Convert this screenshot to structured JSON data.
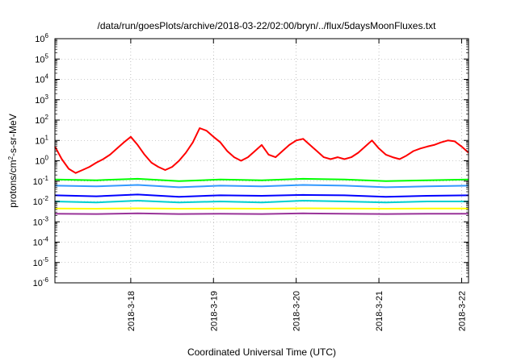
{
  "chart_data": {
    "type": "line",
    "title": "/data/run/goesPlots/archive/2018-03-22/02:00/bryn/../flux/5daysMoonFluxes.txt",
    "xlabel": "Coordinated Universal Time (UTC)",
    "ylabel": {
      "pre": "protons/cm",
      "sup": "2",
      "post": "-s-sr-MeV"
    },
    "y_scale": "log",
    "ylim": [
      1e-06,
      1000000.0
    ],
    "xlim": [
      "2018-03-17T02:00",
      "2018-03-22T02:00"
    ],
    "grid": true,
    "legend": "none",
    "y_ticks": [
      {
        "value": 1e-06,
        "base": "10",
        "exp": "-6"
      },
      {
        "value": 1e-05,
        "base": "10",
        "exp": "-5"
      },
      {
        "value": 0.0001,
        "base": "10",
        "exp": "-4"
      },
      {
        "value": 0.001,
        "base": "10",
        "exp": "-3"
      },
      {
        "value": 0.01,
        "base": "10",
        "exp": "-2"
      },
      {
        "value": 0.1,
        "base": "10",
        "exp": "-1"
      },
      {
        "value": 1,
        "base": "10",
        "exp": "0"
      },
      {
        "value": 10,
        "base": "10",
        "exp": "1"
      },
      {
        "value": 100,
        "base": "10",
        "exp": "2"
      },
      {
        "value": 1000,
        "base": "10",
        "exp": "3"
      },
      {
        "value": 10000,
        "base": "10",
        "exp": "4"
      },
      {
        "value": 100000,
        "base": "10",
        "exp": "5"
      },
      {
        "value": 1000000,
        "base": "10",
        "exp": "6"
      }
    ],
    "x_ticks": [
      {
        "value": "2018-03-18T00:00",
        "label": "2018-3-18"
      },
      {
        "value": "2018-03-19T00:00",
        "label": "2018-3-19"
      },
      {
        "value": "2018-03-20T00:00",
        "label": "2018-3-20"
      },
      {
        "value": "2018-03-21T00:00",
        "label": "2018-3-21"
      },
      {
        "value": "2018-03-22T00:00",
        "label": "2018-3-22"
      }
    ],
    "series": [
      {
        "color": "#ff0000",
        "x": [
          "2018-03-17T02:00",
          "2018-03-17T04:00",
          "2018-03-17T06:00",
          "2018-03-17T08:00",
          "2018-03-17T10:00",
          "2018-03-17T12:00",
          "2018-03-17T14:00",
          "2018-03-17T16:00",
          "2018-03-17T18:00",
          "2018-03-17T20:00",
          "2018-03-17T22:00",
          "2018-03-18T00:00",
          "2018-03-18T02:00",
          "2018-03-18T04:00",
          "2018-03-18T06:00",
          "2018-03-18T08:00",
          "2018-03-18T10:00",
          "2018-03-18T12:00",
          "2018-03-18T14:00",
          "2018-03-18T16:00",
          "2018-03-18T18:00",
          "2018-03-18T20:00",
          "2018-03-18T22:00",
          "2018-03-19T00:00",
          "2018-03-19T02:00",
          "2018-03-19T04:00",
          "2018-03-19T06:00",
          "2018-03-19T08:00",
          "2018-03-19T10:00",
          "2018-03-19T12:00",
          "2018-03-19T14:00",
          "2018-03-19T16:00",
          "2018-03-19T18:00",
          "2018-03-19T20:00",
          "2018-03-19T22:00",
          "2018-03-20T00:00",
          "2018-03-20T02:00",
          "2018-03-20T04:00",
          "2018-03-20T06:00",
          "2018-03-20T08:00",
          "2018-03-20T10:00",
          "2018-03-20T12:00",
          "2018-03-20T14:00",
          "2018-03-20T16:00",
          "2018-03-20T18:00",
          "2018-03-20T20:00",
          "2018-03-20T22:00",
          "2018-03-21T00:00",
          "2018-03-21T02:00",
          "2018-03-21T04:00",
          "2018-03-21T06:00",
          "2018-03-21T08:00",
          "2018-03-21T10:00",
          "2018-03-21T12:00",
          "2018-03-21T14:00",
          "2018-03-21T16:00",
          "2018-03-21T18:00",
          "2018-03-21T20:00",
          "2018-03-21T22:00",
          "2018-03-22T00:00",
          "2018-03-22T02:00"
        ],
        "y": [
          5,
          1.2,
          0.4,
          0.25,
          0.35,
          0.5,
          0.8,
          1.2,
          2,
          4,
          8,
          15,
          6,
          2,
          0.8,
          0.5,
          0.35,
          0.5,
          1,
          2.5,
          8,
          40,
          30,
          15,
          8,
          3,
          1.5,
          1,
          1.5,
          3,
          6,
          2,
          1.5,
          3,
          6,
          10,
          12,
          6,
          3,
          1.5,
          1.2,
          1.5,
          1.2,
          1.5,
          2.5,
          5,
          10,
          4,
          2,
          1.5,
          1.2,
          1.8,
          3,
          4,
          5,
          6,
          8,
          10,
          9,
          5,
          2.5
        ]
      },
      {
        "color": "#00ff00",
        "x": [
          "2018-03-17T02:00",
          "2018-03-17T14:00",
          "2018-03-18T02:00",
          "2018-03-18T14:00",
          "2018-03-19T02:00",
          "2018-03-19T14:00",
          "2018-03-20T02:00",
          "2018-03-20T14:00",
          "2018-03-21T02:00",
          "2018-03-21T14:00",
          "2018-03-22T02:00"
        ],
        "y": [
          0.12,
          0.11,
          0.13,
          0.1,
          0.12,
          0.11,
          0.13,
          0.12,
          0.1,
          0.11,
          0.12
        ]
      },
      {
        "color": "#3399ff",
        "x": [
          "2018-03-17T02:00",
          "2018-03-17T14:00",
          "2018-03-18T02:00",
          "2018-03-18T14:00",
          "2018-03-19T02:00",
          "2018-03-19T14:00",
          "2018-03-20T02:00",
          "2018-03-20T14:00",
          "2018-03-21T02:00",
          "2018-03-21T14:00",
          "2018-03-22T02:00"
        ],
        "y": [
          0.06,
          0.055,
          0.065,
          0.05,
          0.06,
          0.055,
          0.065,
          0.06,
          0.05,
          0.055,
          0.06
        ]
      },
      {
        "color": "#0000ff",
        "x": [
          "2018-03-17T02:00",
          "2018-03-17T14:00",
          "2018-03-18T02:00",
          "2018-03-18T14:00",
          "2018-03-19T02:00",
          "2018-03-19T14:00",
          "2018-03-20T02:00",
          "2018-03-20T14:00",
          "2018-03-21T02:00",
          "2018-03-21T14:00",
          "2018-03-22T02:00"
        ],
        "y": [
          0.02,
          0.018,
          0.022,
          0.017,
          0.02,
          0.019,
          0.021,
          0.02,
          0.017,
          0.019,
          0.02
        ]
      },
      {
        "color": "#00d0d0",
        "x": [
          "2018-03-17T02:00",
          "2018-03-17T14:00",
          "2018-03-18T02:00",
          "2018-03-18T14:00",
          "2018-03-19T02:00",
          "2018-03-19T14:00",
          "2018-03-20T02:00",
          "2018-03-20T14:00",
          "2018-03-21T02:00",
          "2018-03-21T14:00",
          "2018-03-22T02:00"
        ],
        "y": [
          0.01,
          0.009,
          0.011,
          0.009,
          0.01,
          0.009,
          0.011,
          0.01,
          0.009,
          0.01,
          0.01
        ]
      },
      {
        "color": "#ffff00",
        "x": [
          "2018-03-17T02:00",
          "2018-03-17T14:00",
          "2018-03-18T02:00",
          "2018-03-18T14:00",
          "2018-03-19T02:00",
          "2018-03-19T14:00",
          "2018-03-20T02:00",
          "2018-03-20T14:00",
          "2018-03-21T02:00",
          "2018-03-21T14:00",
          "2018-03-22T02:00"
        ],
        "y": [
          0.0045,
          0.0044,
          0.0046,
          0.0044,
          0.0045,
          0.0044,
          0.0046,
          0.0045,
          0.0044,
          0.0045,
          0.0045
        ]
      },
      {
        "color": "#993399",
        "x": [
          "2018-03-17T02:00",
          "2018-03-17T14:00",
          "2018-03-18T02:00",
          "2018-03-18T14:00",
          "2018-03-19T02:00",
          "2018-03-19T14:00",
          "2018-03-20T02:00",
          "2018-03-20T14:00",
          "2018-03-21T02:00",
          "2018-03-21T14:00",
          "2018-03-22T02:00"
        ],
        "y": [
          0.0025,
          0.0024,
          0.0026,
          0.0024,
          0.0025,
          0.0024,
          0.0026,
          0.0025,
          0.0024,
          0.0025,
          0.0025
        ]
      }
    ]
  }
}
